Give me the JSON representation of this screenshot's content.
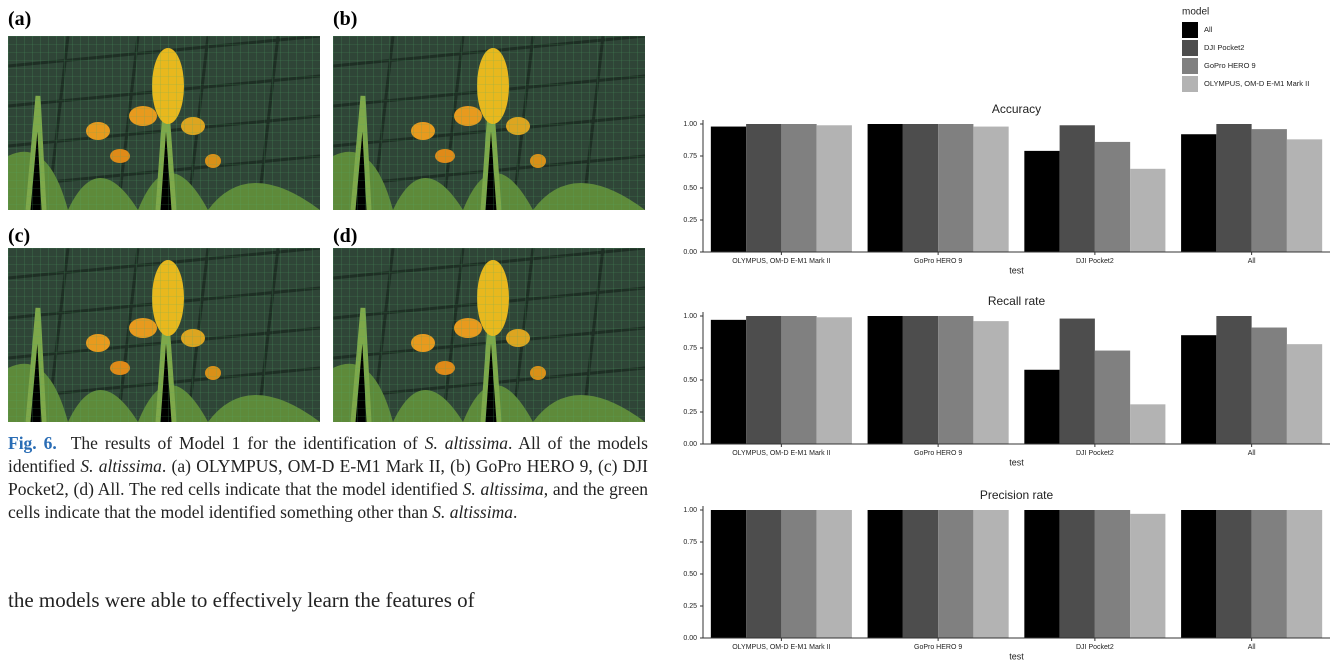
{
  "figure": {
    "panels": [
      "(a)",
      "(b)",
      "(c)",
      "(d)"
    ]
  },
  "caption": {
    "label": "Fig. 6.",
    "runs": [
      "The results of Model 1 for the identification of ",
      "S. altissima",
      ". All of the models identified ",
      "S. altissima",
      ". (a) OLYMPUS, OM-D E-M1 Mark II, (b) GoPro HERO 9, (c) DJI Pocket2, (d) All. The red cells indicate that the model identified ",
      "S. altissima",
      ", and the green cells indicate that the model identified something other than ",
      "S. altissima",
      "."
    ]
  },
  "body": "the models were able to effectively learn the features of",
  "legend": {
    "title": "model"
  },
  "chart_data": [
    {
      "type": "bar",
      "title": "Accuracy",
      "x_label": "test",
      "categories": [
        "OLYMPUS, OM-D E-M1 Mark II",
        "GoPro HERO 9",
        "DJI Pocket2",
        "All"
      ],
      "series": [
        {
          "name": "All",
          "color": "#000000",
          "values": [
            0.98,
            1.0,
            0.79,
            0.92
          ]
        },
        {
          "name": "DJI Pocket2",
          "color": "#4d4d4d",
          "values": [
            1.0,
            1.0,
            0.99,
            1.0
          ]
        },
        {
          "name": "GoPro HERO 9",
          "color": "#808080",
          "values": [
            1.0,
            1.0,
            0.86,
            0.96
          ]
        },
        {
          "name": "OLYMPUS, OM-D E-M1 Mark II",
          "color": "#b3b3b3",
          "values": [
            0.99,
            0.98,
            0.65,
            0.88
          ]
        }
      ],
      "ylim": [
        0,
        1
      ],
      "yticks": [
        {
          "value": 0,
          "label": "0.00"
        },
        {
          "value": 0.25,
          "label": "0.25"
        },
        {
          "value": 0.5,
          "label": "0.50"
        },
        {
          "value": 0.75,
          "label": "0.75"
        },
        {
          "value": 1,
          "label": "1.00"
        }
      ]
    },
    {
      "type": "bar",
      "title": "Recall rate",
      "x_label": "test",
      "categories": [
        "OLYMPUS, OM-D E-M1 Mark II",
        "GoPro HERO 9",
        "DJI Pocket2",
        "All"
      ],
      "series": [
        {
          "name": "All",
          "color": "#000000",
          "values": [
            0.97,
            1.0,
            0.58,
            0.85
          ]
        },
        {
          "name": "DJI Pocket2",
          "color": "#4d4d4d",
          "values": [
            1.0,
            1.0,
            0.98,
            1.0
          ]
        },
        {
          "name": "GoPro HERO 9",
          "color": "#808080",
          "values": [
            1.0,
            1.0,
            0.73,
            0.91
          ]
        },
        {
          "name": "OLYMPUS, OM-D E-M1 Mark II",
          "color": "#b3b3b3",
          "values": [
            0.99,
            0.96,
            0.31,
            0.78
          ]
        }
      ],
      "ylim": [
        0,
        1
      ],
      "yticks": [
        {
          "value": 0,
          "label": "0.00"
        },
        {
          "value": 0.25,
          "label": "0.25"
        },
        {
          "value": 0.5,
          "label": "0.50"
        },
        {
          "value": 0.75,
          "label": "0.75"
        },
        {
          "value": 1,
          "label": "1.00"
        }
      ]
    },
    {
      "type": "bar",
      "title": "Precision rate",
      "x_label": "test",
      "categories": [
        "OLYMPUS, OM-D E-M1 Mark II",
        "GoPro HERO 9",
        "DJI Pocket2",
        "All"
      ],
      "series": [
        {
          "name": "All",
          "color": "#000000",
          "values": [
            1.0,
            1.0,
            1.0,
            1.0
          ]
        },
        {
          "name": "DJI Pocket2",
          "color": "#4d4d4d",
          "values": [
            1.0,
            1.0,
            1.0,
            1.0
          ]
        },
        {
          "name": "GoPro HERO 9",
          "color": "#808080",
          "values": [
            1.0,
            1.0,
            1.0,
            1.0
          ]
        },
        {
          "name": "OLYMPUS, OM-D E-M1 Mark II",
          "color": "#b3b3b3",
          "values": [
            1.0,
            1.0,
            0.97,
            1.0
          ]
        }
      ],
      "ylim": [
        0,
        1
      ],
      "yticks": [
        {
          "value": 0,
          "label": "0.00"
        },
        {
          "value": 0.25,
          "label": "0.25"
        },
        {
          "value": 0.5,
          "label": "0.50"
        },
        {
          "value": 0.75,
          "label": "0.75"
        },
        {
          "value": 1,
          "label": "1.00"
        }
      ]
    }
  ]
}
